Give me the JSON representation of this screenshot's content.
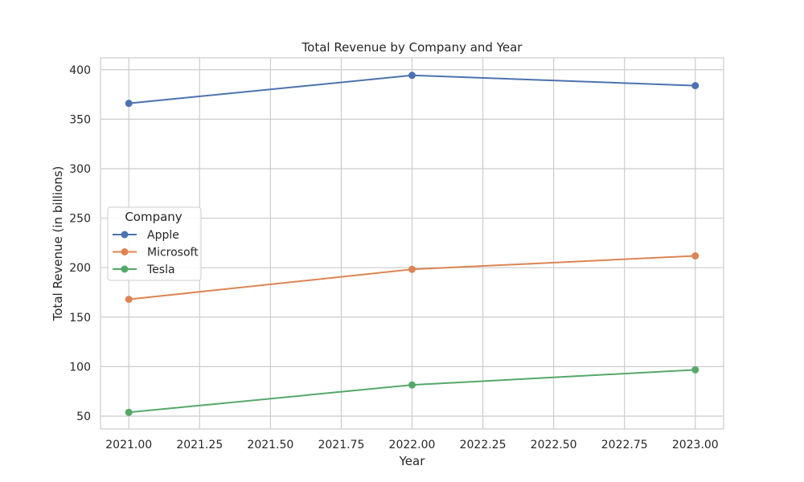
{
  "chart_data": {
    "type": "line",
    "title": "Total Revenue by Company and Year",
    "xlabel": "Year",
    "ylabel": "Total Revenue (in billions)",
    "x": [
      2021,
      2022,
      2023
    ],
    "xlim": [
      2020.9,
      2023.1
    ],
    "ylim": [
      37,
      412
    ],
    "xticks": [
      2021.0,
      2021.25,
      2021.5,
      2021.75,
      2022.0,
      2022.25,
      2022.5,
      2022.75,
      2023.0
    ],
    "xtick_labels": [
      "2021.00",
      "2021.25",
      "2021.50",
      "2021.75",
      "2022.00",
      "2022.25",
      "2022.50",
      "2022.75",
      "2023.00"
    ],
    "yticks": [
      50,
      100,
      150,
      200,
      250,
      300,
      350,
      400
    ],
    "ytick_labels": [
      "50",
      "100",
      "150",
      "200",
      "250",
      "300",
      "350",
      "400"
    ],
    "grid": true,
    "legend": {
      "title": "Company",
      "placement": "center-left"
    },
    "series": [
      {
        "name": "Apple",
        "color": "#4c72b0",
        "values": [
          366,
          394.3,
          383.9
        ]
      },
      {
        "name": "Microsoft",
        "color": "#dd8452",
        "values": [
          168,
          198.3,
          211.9
        ]
      },
      {
        "name": "Tesla",
        "color": "#55a868",
        "values": [
          53.8,
          81.5,
          96.8
        ]
      }
    ]
  }
}
